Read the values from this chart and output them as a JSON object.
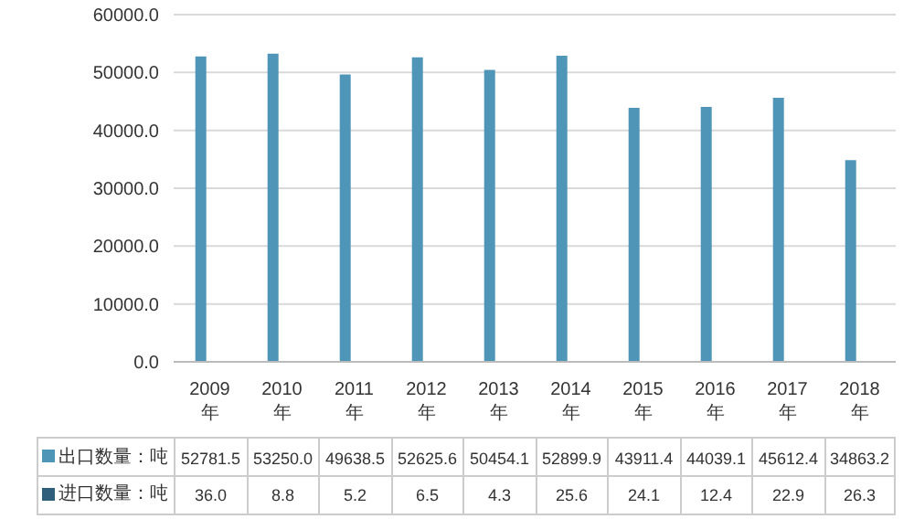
{
  "chart_data": {
    "type": "bar",
    "categories": [
      "2009年",
      "2010年",
      "2011年",
      "2012年",
      "2013年",
      "2014年",
      "2015年",
      "2016年",
      "2017年",
      "2018年"
    ],
    "series": [
      {
        "name": "出口数量：吨",
        "color": "#4f95b8",
        "values": [
          52781.5,
          53250.0,
          49638.5,
          52625.6,
          50454.1,
          52899.9,
          43911.4,
          44039.1,
          45612.4,
          34863.2
        ],
        "value_labels": [
          "52781.5",
          "53250.0",
          "49638.5",
          "52625.6",
          "50454.1",
          "52899.9",
          "43911.4",
          "44039.1",
          "45612.4",
          "34863.2"
        ]
      },
      {
        "name": "进口数量：吨",
        "color": "#2f5f7a",
        "values": [
          36.0,
          8.8,
          5.2,
          6.5,
          4.3,
          25.6,
          24.1,
          12.4,
          22.9,
          26.3
        ],
        "value_labels": [
          "36.0",
          "8.8",
          "5.2",
          "6.5",
          "4.3",
          "25.6",
          "24.1",
          "12.4",
          "22.9",
          "26.3"
        ]
      }
    ],
    "ylim": [
      0,
      60000
    ],
    "yticks": [
      {
        "value": 0,
        "label": "0.0"
      },
      {
        "value": 10000,
        "label": "10000.0"
      },
      {
        "value": 20000,
        "label": "20000.0"
      },
      {
        "value": 30000,
        "label": "30000.0"
      },
      {
        "value": 40000,
        "label": "40000.0"
      },
      {
        "value": 50000,
        "label": "50000.0"
      },
      {
        "value": 60000,
        "label": "60000.0"
      }
    ],
    "grid": "y",
    "legend": "bottom left"
  }
}
